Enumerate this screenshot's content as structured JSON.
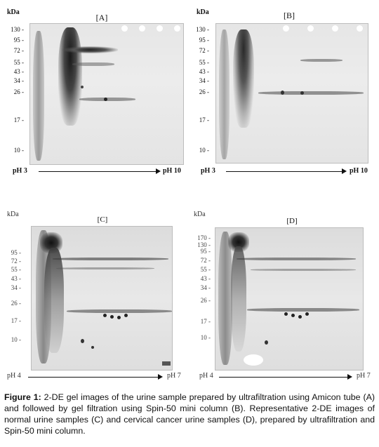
{
  "figure": {
    "label": "Figure 1:",
    "caption": " 2-DE gel images of the urine sample prepared by ultrafiltration using Amicon tube (A) and followed by gel filtration using Spin-50 mini column (B). Representative 2-DE images of normal urine samples (C) and cervical cancer urine samples (D), prepared by ultrafiltration and Spin-50 mini column."
  },
  "panels": [
    {
      "id": "A",
      "title": "[A]",
      "unit": "kDa",
      "markers": [
        "130",
        "95",
        "72",
        "55",
        "43",
        "34",
        "26",
        "17",
        "10"
      ],
      "ph_start": "pH 3",
      "ph_end": "pH 10"
    },
    {
      "id": "B",
      "title": "[B]",
      "unit": "kDa",
      "markers": [
        "130",
        "95",
        "72",
        "55",
        "43",
        "34",
        "26",
        "17",
        "10"
      ],
      "ph_start": "pH 3",
      "ph_end": "pH 10"
    },
    {
      "id": "C",
      "title": "[C]",
      "unit": "kDa",
      "markers": [
        "95",
        "72",
        "55",
        "43",
        "34",
        "26",
        "17",
        "10"
      ],
      "ph_start": "pH 4",
      "ph_end": "pH 7"
    },
    {
      "id": "D",
      "title": "[D]",
      "unit": "kDa",
      "markers": [
        "170",
        "130",
        "95",
        "72",
        "55",
        "43",
        "34",
        "26",
        "17",
        "10"
      ],
      "ph_start": "pH 4",
      "ph_end": "pH 7"
    }
  ]
}
